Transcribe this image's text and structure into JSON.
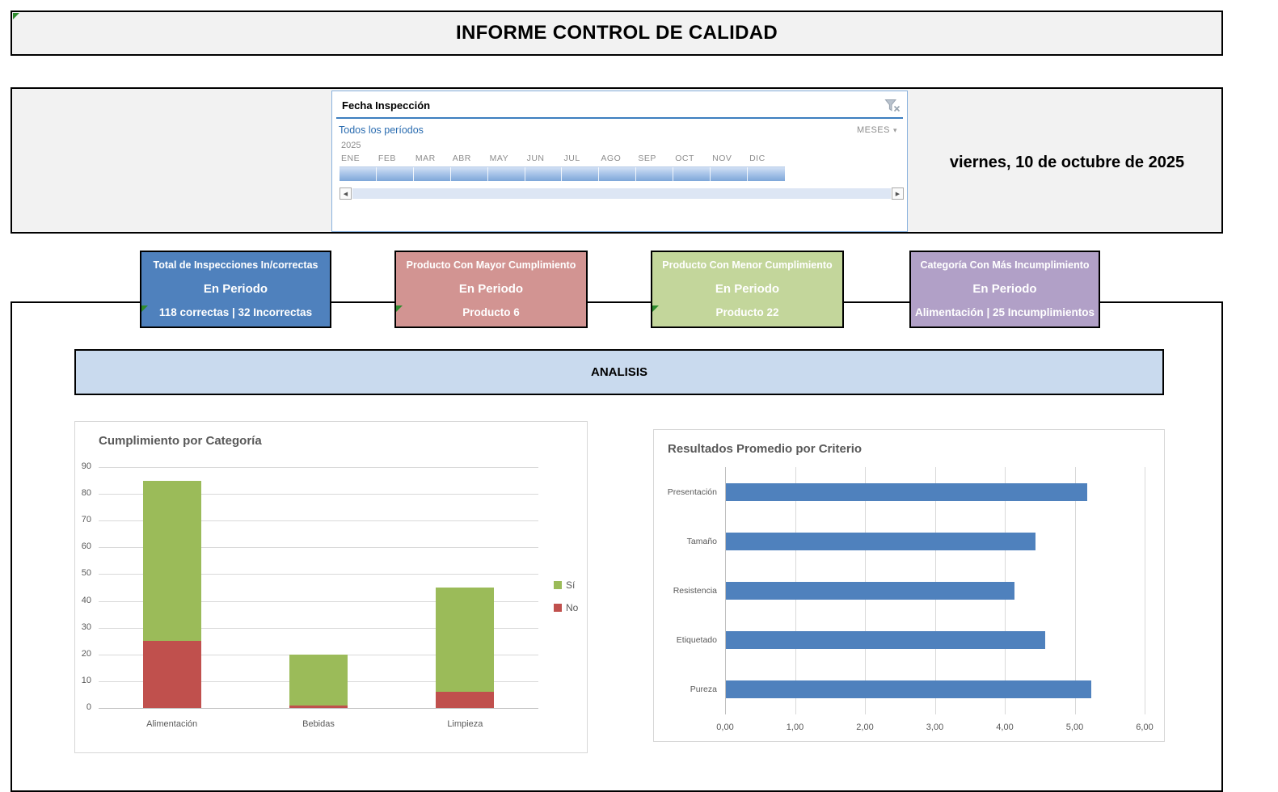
{
  "header": {
    "title": "INFORME CONTROL DE CALIDAD"
  },
  "filters": {
    "report_date": "viernes, 10 de octubre de 2025",
    "slicer": {
      "title": "Fecha Inspección",
      "range_label": "Todos los períodos",
      "granularity": "MESES",
      "year": "2025",
      "months": [
        "ENE",
        "FEB",
        "MAR",
        "ABR",
        "MAY",
        "JUN",
        "JUL",
        "AGO",
        "SEP",
        "OCT",
        "NOV",
        "DIC"
      ]
    }
  },
  "icons": {
    "clear_filter": "funnel-x",
    "granularity_caret": "▾",
    "scroll_left_glyph": "◀",
    "scroll_right_glyph": "▶"
  },
  "kpi_cards": [
    {
      "title": "Total de Inspecciones In/correctas",
      "subtitle": "En Periodo",
      "value": "118 correctas | 32 Incorrectas",
      "color": "#4f81bd"
    },
    {
      "title": "Producto Con Mayor Cumplimiento",
      "subtitle": "En Periodo",
      "value": "Producto 6",
      "color": "#d29492"
    },
    {
      "title": "Producto Con Menor Cumplimiento",
      "subtitle": "En Periodo",
      "value": "Producto 22",
      "color": "#c3d69b"
    },
    {
      "title": "Categoría Con Más Incumplimiento",
      "subtitle": "En Periodo",
      "value": "Alimentación | 25 Incumplimientos",
      "color": "#b1a0c7"
    }
  ],
  "section": {
    "title": "ANALISIS"
  },
  "chart_data": [
    {
      "type": "bar",
      "subtype": "stacked-column",
      "title": "Cumplimiento por Categoría",
      "categories": [
        "Alimentación",
        "Bebidas",
        "Limpieza"
      ],
      "series": [
        {
          "name": "No",
          "color": "#c0504d",
          "values": [
            25,
            1,
            6
          ]
        },
        {
          "name": "Sí",
          "color": "#9bbb59",
          "values": [
            60,
            19,
            39
          ]
        }
      ],
      "stack_totals": [
        85,
        20,
        45
      ],
      "xlabel": "",
      "ylabel": "",
      "ylim": [
        0,
        90
      ],
      "ytick_step": 10,
      "grid": true,
      "legend": [
        "Sí",
        "No"
      ],
      "legend_position": "right"
    },
    {
      "type": "bar",
      "subtype": "horizontal",
      "title": "Resultados Promedio por Criterio",
      "categories": [
        "Presentación",
        "Tamaño",
        "Resistencia",
        "Etiquetado",
        "Pureza"
      ],
      "values": [
        5.17,
        4.43,
        4.13,
        4.57,
        5.23
      ],
      "bar_color": "#4f81bd",
      "xlabel": "",
      "ylabel": "",
      "xlim": [
        0,
        6
      ],
      "xtick_step": 1,
      "xtick_labels": [
        "0,00",
        "1,00",
        "2,00",
        "3,00",
        "4,00",
        "5,00",
        "6,00"
      ],
      "grid": true,
      "legend_position": "none"
    }
  ]
}
